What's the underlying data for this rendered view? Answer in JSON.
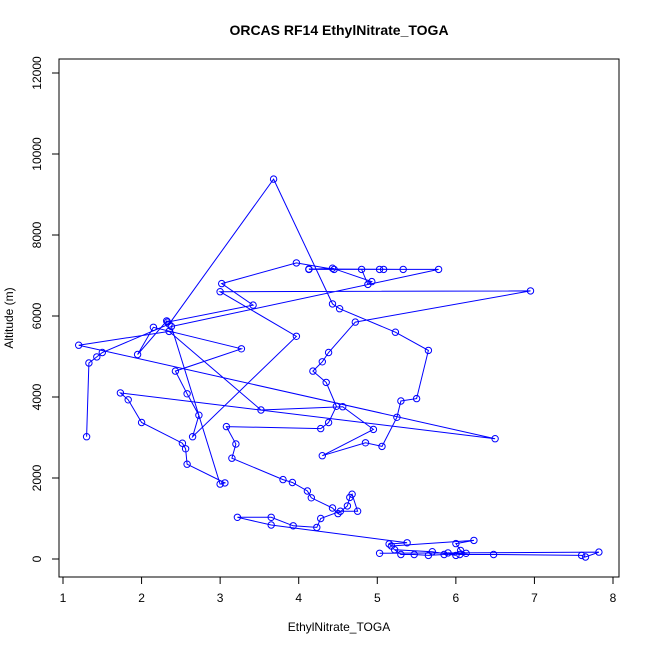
{
  "chart_data": {
    "type": "line",
    "title": "ORCAS RF14 EthylNitrate_TOGA",
    "xlabel": "EthylNitrate_TOGA",
    "ylabel": "Altitude (m)",
    "xlim": [
      1,
      8
    ],
    "ylim": [
      0,
      12500
    ],
    "x_ticks": [
      1,
      2,
      3,
      4,
      5,
      6,
      7,
      8
    ],
    "y_ticks": [
      0,
      2000,
      4000,
      6000,
      8000,
      10000,
      12000
    ],
    "grid": false,
    "series": [
      {
        "color": "#0000ff",
        "marker": "open-circle",
        "points": [
          [
            1.3,
            3020
          ],
          [
            1.33,
            4840
          ],
          [
            1.43,
            4990
          ],
          [
            1.5,
            5100
          ],
          [
            2.35,
            5800
          ],
          [
            3.68,
            9380
          ],
          [
            4.43,
            6300
          ],
          [
            4.52,
            6180
          ],
          [
            5.23,
            5600
          ],
          [
            5.65,
            5150
          ],
          [
            5.5,
            3960
          ],
          [
            5.3,
            3900
          ],
          [
            5.25,
            3500
          ],
          [
            5.06,
            2780
          ],
          [
            4.85,
            2870
          ],
          [
            4.3,
            2550
          ],
          [
            4.95,
            3200
          ],
          [
            4.56,
            3760
          ],
          [
            3.52,
            3680
          ],
          [
            2.35,
            5620
          ],
          [
            1.2,
            5280
          ],
          [
            6.5,
            2970
          ],
          [
            1.73,
            4100
          ],
          [
            1.83,
            3930
          ],
          [
            2.0,
            3370
          ],
          [
            2.52,
            2860
          ],
          [
            2.56,
            2720
          ],
          [
            2.58,
            2340
          ],
          [
            3.06,
            1880
          ],
          [
            3.0,
            1850
          ],
          [
            2.38,
            5740
          ],
          [
            5.78,
            7150
          ],
          [
            4.13,
            7150
          ],
          [
            4.43,
            7180
          ],
          [
            4.93,
            6850
          ],
          [
            4.88,
            6780
          ],
          [
            4.8,
            7150
          ],
          [
            5.03,
            7150
          ],
          [
            5.08,
            7150
          ],
          [
            5.33,
            7150
          ],
          [
            4.13,
            7160
          ],
          [
            4.45,
            7150
          ],
          [
            3.97,
            7310
          ],
          [
            3.02,
            6800
          ],
          [
            3.42,
            6270
          ],
          [
            2.33,
            5850
          ],
          [
            2.32,
            5880
          ],
          [
            1.95,
            5050
          ],
          [
            2.15,
            5720
          ],
          [
            3.27,
            5190
          ],
          [
            2.43,
            4640
          ],
          [
            2.58,
            4080
          ],
          [
            2.73,
            3550
          ],
          [
            2.65,
            3020
          ],
          [
            3.97,
            5500
          ],
          [
            3.0,
            6600
          ],
          [
            6.95,
            6620
          ],
          [
            4.72,
            5850
          ],
          [
            4.38,
            5100
          ],
          [
            4.3,
            4870
          ],
          [
            4.18,
            4640
          ],
          [
            4.35,
            4360
          ],
          [
            4.48,
            3770
          ],
          [
            4.38,
            3370
          ],
          [
            4.28,
            3220
          ],
          [
            3.08,
            3270
          ],
          [
            3.2,
            2840
          ],
          [
            3.15,
            2490
          ],
          [
            3.8,
            1960
          ],
          [
            3.92,
            1890
          ],
          [
            4.11,
            1680
          ],
          [
            4.16,
            1510
          ],
          [
            4.43,
            1260
          ],
          [
            4.5,
            1120
          ],
          [
            4.62,
            1310
          ],
          [
            4.65,
            1520
          ],
          [
            4.68,
            1600
          ],
          [
            4.75,
            1180
          ],
          [
            4.53,
            1180
          ],
          [
            4.28,
            1000
          ],
          [
            4.23,
            780
          ],
          [
            3.93,
            820
          ],
          [
            3.65,
            1030
          ],
          [
            3.22,
            1030
          ],
          [
            3.65,
            840
          ],
          [
            5.38,
            400
          ],
          [
            5.15,
            370
          ],
          [
            5.18,
            320
          ],
          [
            6.23,
            460
          ],
          [
            6.0,
            380
          ],
          [
            6.06,
            210
          ],
          [
            6.13,
            140
          ],
          [
            5.85,
            110
          ],
          [
            5.65,
            90
          ],
          [
            5.47,
            110
          ],
          [
            5.3,
            110
          ],
          [
            5.22,
            230
          ],
          [
            5.7,
            180
          ],
          [
            6.0,
            90
          ],
          [
            5.9,
            150
          ],
          [
            6.05,
            110
          ],
          [
            6.48,
            110
          ],
          [
            7.6,
            90
          ],
          [
            7.65,
            50
          ],
          [
            7.82,
            170
          ],
          [
            5.03,
            140
          ]
        ]
      }
    ]
  }
}
